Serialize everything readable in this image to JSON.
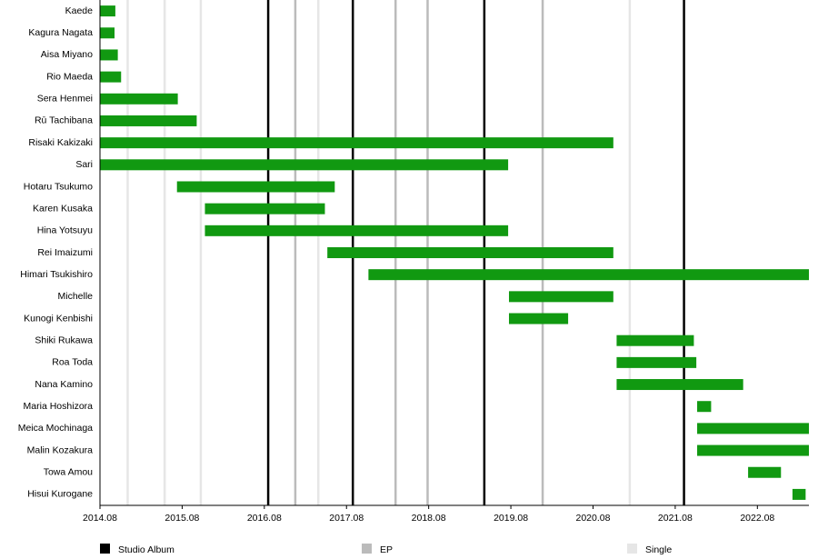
{
  "chart_data": {
    "type": "timeline",
    "categories": [
      "Kaede",
      "Kagura Nagata",
      "Aisa Miyano",
      "Rio Maeda",
      "Sera Henmei",
      "Rū Tachibana",
      "Risaki Kakizaki",
      "Sari",
      "Hotaru Tsukumo",
      "Karen Kusaka",
      "Hina Yotsuyu",
      "Rei Imaizumi",
      "Himari Tsukishiro",
      "Michelle",
      "Kunogi Kenbishi",
      "Shiki Rukawa",
      "Roa Toda",
      "Nana Kamino",
      "Maria Hoshizora",
      "Meica Mochinaga",
      "Malin Kozakura",
      "Towa Amou",
      "Hisui Kurogane"
    ],
    "starts": [
      2014.583,
      2014.583,
      2014.583,
      2014.583,
      2014.583,
      2014.583,
      2014.583,
      2014.583,
      2015.52,
      2015.86,
      2015.86,
      2017.35,
      2017.85,
      2019.56,
      2019.56,
      2020.87,
      2020.87,
      2020.87,
      2021.85,
      2021.85,
      2021.85,
      2022.47,
      2023.01
    ],
    "ends": [
      2014.77,
      2014.76,
      2014.8,
      2014.84,
      2015.53,
      2015.76,
      2020.83,
      2019.55,
      2017.44,
      2017.32,
      2019.55,
      2020.83,
      2023.21,
      2020.83,
      2020.28,
      2021.81,
      2021.84,
      2022.41,
      2022.02,
      2023.21,
      2023.21,
      2022.87,
      2023.17
    ],
    "color": "#119911",
    "events": [
      {
        "name": "Studio Album",
        "color": "#000000",
        "x": [
          2016.63,
          2017.66,
          2019.26,
          2021.69
        ]
      },
      {
        "name": "EP",
        "color": "#bbbbbb",
        "x": [
          2016.96,
          2018.18,
          2018.57,
          2019.97
        ]
      },
      {
        "name": "Single",
        "color": "#e6e6e6",
        "x": [
          2014.92,
          2015.37,
          2015.81,
          2017.24,
          2021.03
        ]
      }
    ],
    "xlim": [
      2014.583,
      2023.21
    ],
    "xticks": [
      {
        "value": 2014.583,
        "label": "2014.08"
      },
      {
        "value": 2015.583,
        "label": "2015.08"
      },
      {
        "value": 2016.583,
        "label": "2016.08"
      },
      {
        "value": 2017.583,
        "label": "2017.08"
      },
      {
        "value": 2018.583,
        "label": "2018.08"
      },
      {
        "value": 2019.583,
        "label": "2019.08"
      },
      {
        "value": 2020.583,
        "label": "2020.08"
      },
      {
        "value": 2021.583,
        "label": "2021.08"
      },
      {
        "value": 2022.583,
        "label": "2022.08"
      }
    ]
  }
}
